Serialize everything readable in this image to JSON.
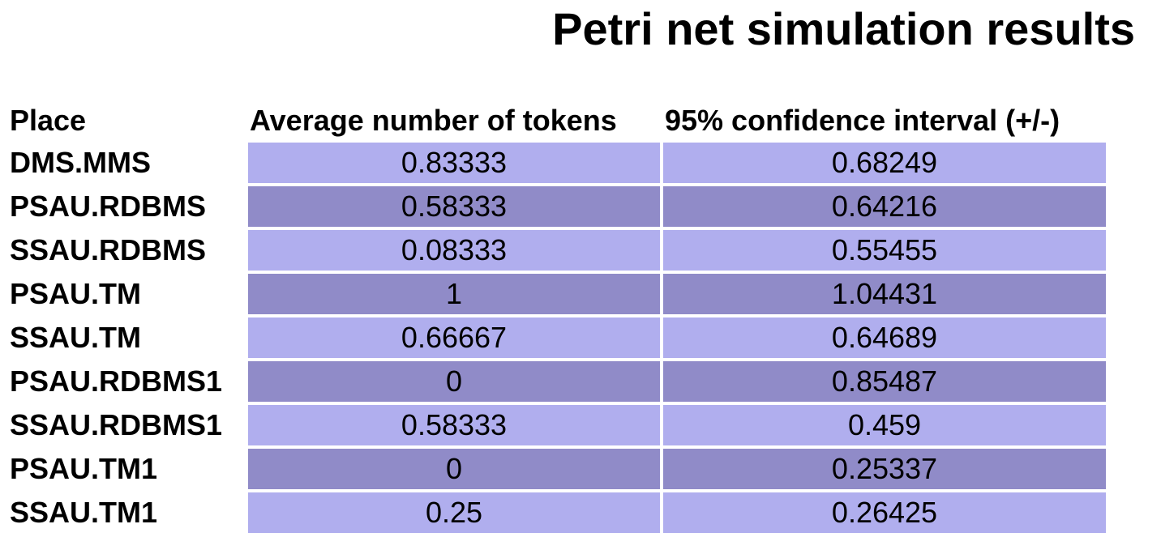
{
  "title": "Petri net simulation results",
  "table": {
    "headers": [
      "Place",
      "Average number of tokens",
      "95% confidence interval (+/-)"
    ],
    "rows": [
      {
        "place": "DMS.MMS",
        "avg": "0.83333",
        "ci": "0.68249"
      },
      {
        "place": "PSAU.RDBMS",
        "avg": "0.58333",
        "ci": "0.64216"
      },
      {
        "place": "SSAU.RDBMS",
        "avg": "0.08333",
        "ci": "0.55455"
      },
      {
        "place": "PSAU.TM",
        "avg": "1",
        "ci": "1.04431"
      },
      {
        "place": "SSAU.TM",
        "avg": "0.66667",
        "ci": "0.64689"
      },
      {
        "place": "PSAU.RDBMS1",
        "avg": "0",
        "ci": "0.85487"
      },
      {
        "place": "SSAU.RDBMS1",
        "avg": "0.58333",
        "ci": "0.459"
      },
      {
        "place": "PSAU.TM1",
        "avg": "0",
        "ci": "0.25337"
      },
      {
        "place": "SSAU.TM1",
        "avg": "0.25",
        "ci": "0.26425"
      }
    ]
  },
  "colors": {
    "row_light": "#b0aeee",
    "row_dark": "#908bc8"
  }
}
